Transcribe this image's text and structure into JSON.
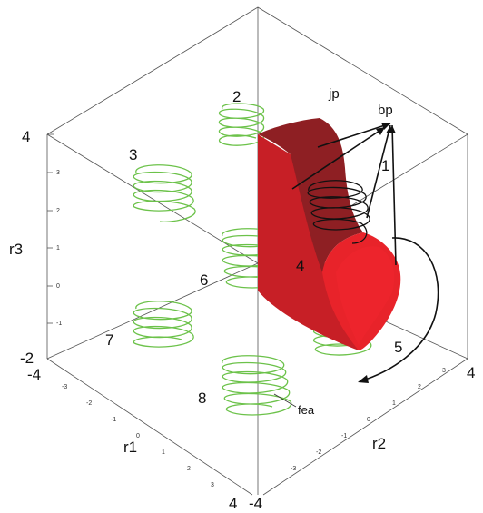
{
  "axes": {
    "r1_label": "r1",
    "r2_label": "r2",
    "r3_label": "r3",
    "corner_labels": {
      "top_left": "4",
      "left_mid": "-2",
      "left_bottom": "-4",
      "bottom_left": "4",
      "bottom_right": "-4",
      "right": "4"
    },
    "r3_ticks": [
      "3",
      "2",
      "1",
      "0",
      "-1"
    ],
    "r1_ticks": [
      "-3",
      "-2",
      "-1",
      "0",
      "1",
      "2",
      "3"
    ],
    "r2_ticks": [
      "3",
      "2",
      "1",
      "0",
      "-1",
      "-2",
      "-3"
    ]
  },
  "region_numbers": [
    "1",
    "2",
    "3",
    "4",
    "5",
    "6",
    "7",
    "8"
  ],
  "annotations": {
    "jp": "jp",
    "bp": "bp",
    "fea": "fea"
  },
  "colors": {
    "helix": "#6cc24a",
    "solid_front": "#e8232a",
    "solid_top": "#8e1f23",
    "solid_side": "#c71f26",
    "frame": "#555555"
  }
}
